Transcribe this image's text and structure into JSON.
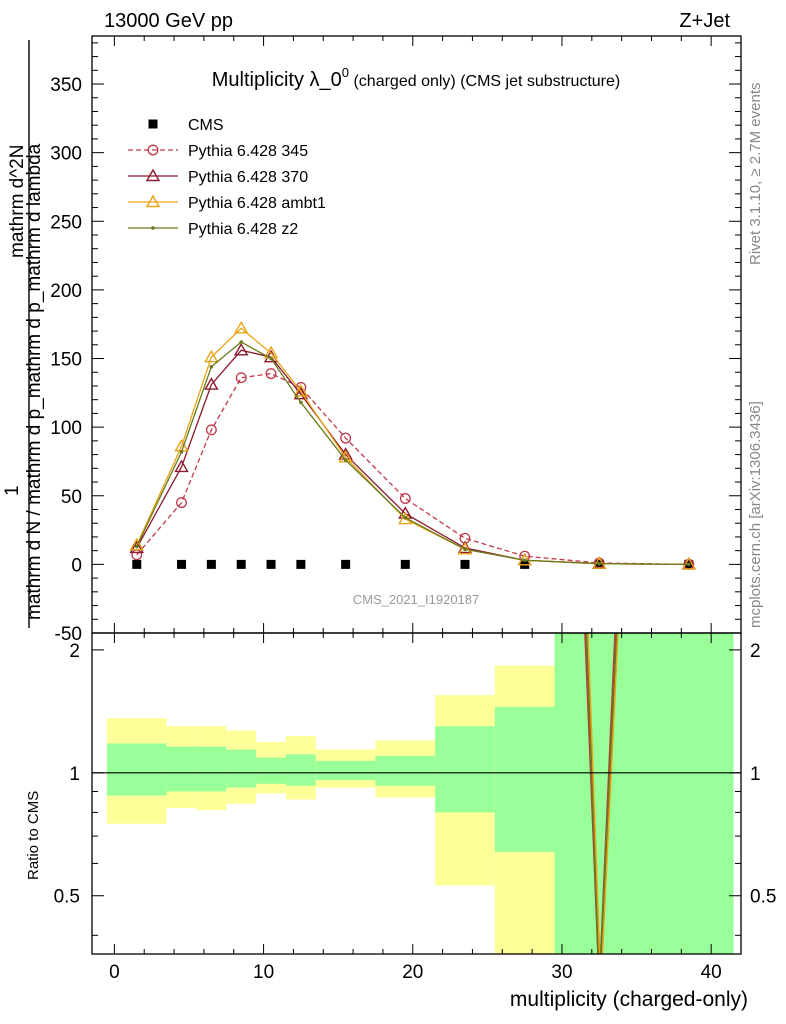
{
  "header": {
    "left": "13000 GeV pp",
    "right": "Z+Jet"
  },
  "side": {
    "rivet": "Rivet 3.1.10, ≥ 2.7M events",
    "mcplots": "mcplots.cern.ch [arXiv:1306.3436]"
  },
  "chart_data": {
    "type": "scatter",
    "title": "Multiplicity λ_0",
    "title_sup": "0",
    "title_suffix": " (charged only) (CMS jet substructure)",
    "analysis_id": "CMS_2021_I1920187",
    "xlabel": "multiplicity (charged-only)",
    "ylabel_main": "mathrm d N / mathrm d p_mathrm d p_mathrm d lambda",
    "ylabel_numerator": "mathrm d^2N",
    "ylabel_one": "1",
    "ylabel_ratio": "Ratio to CMS",
    "xlim": [
      -1.5,
      42
    ],
    "ylim_main": [
      -50,
      385
    ],
    "ylim_ratio": [
      0.36,
      2.2
    ],
    "x_ticks": [
      0,
      10,
      20,
      30,
      40
    ],
    "y_ticks_main": [
      -50,
      0,
      50,
      100,
      150,
      200,
      250,
      300,
      350
    ],
    "y_ticks_ratio": [
      0.5,
      1,
      2
    ],
    "series": [
      {
        "name": "CMS",
        "color": "#000000",
        "marker": "square",
        "x": [
          1.5,
          4.5,
          6.5,
          8.5,
          10.5,
          12.5,
          15.5,
          19.5,
          23.5,
          27.5,
          32.5,
          38.5
        ],
        "values": [
          0,
          0,
          0,
          0,
          0,
          0,
          0,
          0,
          0,
          0,
          0,
          0
        ]
      },
      {
        "name": "Pythia 6.428 345",
        "color": "#c0394b",
        "marker": "circle",
        "dashed": true,
        "x": [
          1.5,
          4.5,
          6.5,
          8.5,
          10.5,
          12.5,
          15.5,
          19.5,
          23.5,
          27.5,
          32.5,
          38.5
        ],
        "values": [
          7,
          45,
          98,
          136,
          139,
          129,
          92,
          48,
          19,
          6,
          1,
          0
        ]
      },
      {
        "name": "Pythia 6.428 370",
        "color": "#8b1a2e",
        "marker": "triangle",
        "x": [
          1.5,
          4.5,
          6.5,
          8.5,
          10.5,
          12.5,
          15.5,
          19.5,
          23.5,
          27.5,
          32.5,
          38.5
        ],
        "values": [
          12,
          71,
          131,
          156,
          151,
          124,
          80,
          37,
          12,
          3,
          0.5,
          0
        ]
      },
      {
        "name": "Pythia 6.428 ambt1",
        "color": "#e8a317",
        "marker": "triangle",
        "x": [
          1.5,
          4.5,
          6.5,
          8.5,
          10.5,
          12.5,
          15.5,
          19.5,
          23.5,
          27.5,
          32.5,
          38.5
        ],
        "values": [
          14,
          86,
          151,
          172,
          154,
          126,
          78,
          33,
          11,
          3,
          0.5,
          0
        ]
      },
      {
        "name": "Pythia 6.428 z2",
        "color": "#6b7a1e",
        "marker": "dot",
        "x": [
          1.5,
          4.5,
          6.5,
          8.5,
          10.5,
          12.5,
          15.5,
          19.5,
          23.5,
          27.5,
          32.5,
          38.5
        ],
        "values": [
          13,
          82,
          144,
          162,
          150,
          118,
          76,
          34,
          11,
          3,
          0.5,
          0
        ]
      }
    ],
    "ratio_bands": [
      {
        "x0": -0.5,
        "x1": 3.5,
        "yellow": [
          0.75,
          1.36
        ],
        "green": [
          0.88,
          1.18
        ]
      },
      {
        "x0": 3.5,
        "x1": 5.5,
        "yellow": [
          0.82,
          1.3
        ],
        "green": [
          0.9,
          1.16
        ]
      },
      {
        "x0": 5.5,
        "x1": 7.5,
        "yellow": [
          0.81,
          1.3
        ],
        "green": [
          0.9,
          1.16
        ]
      },
      {
        "x0": 7.5,
        "x1": 9.5,
        "yellow": [
          0.84,
          1.27
        ],
        "green": [
          0.92,
          1.14
        ]
      },
      {
        "x0": 9.5,
        "x1": 11.5,
        "yellow": [
          0.89,
          1.19
        ],
        "green": [
          0.94,
          1.09
        ]
      },
      {
        "x0": 11.5,
        "x1": 13.5,
        "yellow": [
          0.86,
          1.23
        ],
        "green": [
          0.93,
          1.11
        ]
      },
      {
        "x0": 13.5,
        "x1": 17.5,
        "yellow": [
          0.92,
          1.14
        ],
        "green": [
          0.96,
          1.07
        ]
      },
      {
        "x0": 17.5,
        "x1": 21.5,
        "yellow": [
          0.87,
          1.2
        ],
        "green": [
          0.93,
          1.1
        ]
      },
      {
        "x0": 21.5,
        "x1": 25.5,
        "yellow": [
          0.53,
          1.55
        ],
        "green": [
          0.8,
          1.3
        ]
      },
      {
        "x0": 25.5,
        "x1": 29.5,
        "yellow": [
          0.3,
          1.83
        ],
        "green": [
          0.64,
          1.45
        ]
      },
      {
        "x0": 29.5,
        "x1": 35.5,
        "yellow": [
          0.3,
          2.4
        ],
        "green": [
          0.3,
          2.4
        ]
      },
      {
        "x0": 35.5,
        "x1": 41.5,
        "yellow": [
          0.3,
          2.4
        ],
        "green": [
          0.3,
          2.4
        ]
      }
    ],
    "ratio_lines": [
      {
        "series": "Pythia 6.428 345",
        "color": "#c0394b",
        "points": [
          [
            31.5,
            2.4
          ],
          [
            32.5,
            0.3
          ],
          [
            33.6,
            2.4
          ]
        ]
      },
      {
        "series": "Pythia 6.428 370",
        "color": "#8b1a2e",
        "points": [
          [
            31.6,
            2.4
          ],
          [
            32.5,
            0.3
          ],
          [
            33.7,
            2.4
          ]
        ]
      },
      {
        "series": "Pythia 6.428 ambt1",
        "color": "#e8a317",
        "points": [
          [
            31.7,
            2.4
          ],
          [
            32.6,
            0.3
          ],
          [
            33.8,
            2.4
          ]
        ]
      },
      {
        "series": "Pythia 6.428 z2",
        "color": "#6b7a1e",
        "points": [
          [
            31.6,
            2.4
          ],
          [
            32.5,
            0.3
          ],
          [
            33.7,
            2.4
          ]
        ]
      }
    ],
    "band_colors": {
      "yellow": "#ffff99",
      "green": "#99ff99"
    }
  }
}
